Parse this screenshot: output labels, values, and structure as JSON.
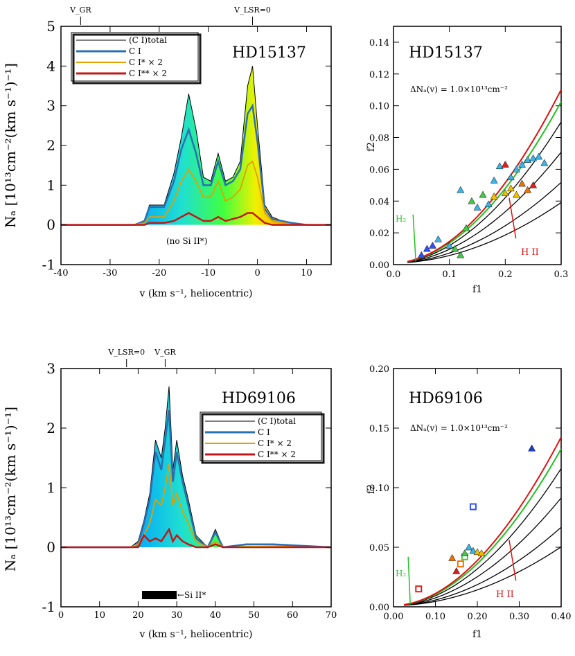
{
  "chart_data": [
    {
      "type": "line",
      "panel": "top-left",
      "star": "HD15137",
      "xlabel": "v (km s⁻¹, heliocentric)",
      "ylabel": "Nₐ [10¹³cm⁻²(km s⁻¹)⁻¹]",
      "xlim": [
        -40,
        15
      ],
      "ylim": [
        -1,
        5
      ],
      "xticks": [
        -40,
        -30,
        -20,
        -10,
        0,
        10
      ],
      "yticks": [
        -1,
        0,
        1,
        2,
        3,
        4,
        5
      ],
      "top_markers": [
        {
          "label": "V_GR",
          "x": -36
        },
        {
          "label": "V_LSR=0",
          "x": -1
        }
      ],
      "annotation": "(no Si II*)",
      "legend": [
        "(C I)total",
        "C I",
        "C I* × 2",
        "C I** × 2"
      ],
      "x": [
        -40,
        -30,
        -25,
        -23,
        -22,
        -21,
        -19,
        -17,
        -15.5,
        -14,
        -12.5,
        -11,
        -9.5,
        -8,
        -6.5,
        -5,
        -3.5,
        -2,
        -1,
        0,
        1.5,
        3,
        5,
        7,
        10,
        15
      ],
      "series": [
        {
          "name": "(C I)total",
          "values": [
            0,
            0,
            0,
            0.1,
            0.5,
            0.5,
            0.5,
            1.3,
            2.2,
            3.3,
            2.4,
            1.2,
            1.1,
            1.8,
            1.1,
            1.2,
            1.6,
            3.5,
            4.0,
            2.5,
            0.5,
            0.2,
            0.1,
            0.05,
            0,
            0
          ]
        },
        {
          "name": "C I",
          "values": [
            0,
            0,
            0,
            0.1,
            0.45,
            0.45,
            0.45,
            1.1,
            1.9,
            2.4,
            1.8,
            1.0,
            1.0,
            1.6,
            1.0,
            1.1,
            1.4,
            2.8,
            3.0,
            2.1,
            0.4,
            0.15,
            0.1,
            0.05,
            0,
            0
          ]
        },
        {
          "name": "C I* × 2",
          "values": [
            0,
            0,
            0,
            0.05,
            0.2,
            0.2,
            0.2,
            0.6,
            1.1,
            1.4,
            1.1,
            0.7,
            0.7,
            1.1,
            0.6,
            0.7,
            0.9,
            1.5,
            1.6,
            1.2,
            0.3,
            0.1,
            0.05,
            0,
            0,
            0
          ]
        },
        {
          "name": "C I** × 2",
          "values": [
            0,
            0,
            0,
            0,
            0.05,
            0.05,
            0.05,
            0.1,
            0.2,
            0.3,
            0.2,
            0.1,
            0.1,
            0.2,
            0.1,
            0.15,
            0.2,
            0.3,
            0.3,
            0.2,
            0.05,
            0,
            0,
            0,
            0,
            0
          ]
        }
      ]
    },
    {
      "type": "scatter",
      "panel": "top-right",
      "star": "HD15137",
      "annotation": "ΔNₐ(v) = 1.0×10¹³cm⁻²",
      "xlabel": "f1",
      "ylabel": "f2",
      "xlim": [
        0,
        0.3
      ],
      "ylim": [
        0,
        0.15
      ],
      "xticks": [
        "0.0",
        "0.1",
        "0.2",
        "0.3"
      ],
      "yticks": [
        "0.00",
        "0.02",
        "0.04",
        "0.06",
        "0.08",
        "0.10",
        "0.12",
        "0.14"
      ],
      "labels": {
        "h2": "H₂",
        "hii": "H II"
      },
      "points": [
        {
          "x": 0.08,
          "y": 0.016,
          "c": "#3cb4e6"
        },
        {
          "x": 0.1,
          "y": 0.012,
          "c": "#3cb4e6"
        },
        {
          "x": 0.12,
          "y": 0.047,
          "c": "#3cb4e6"
        },
        {
          "x": 0.15,
          "y": 0.036,
          "c": "#3cb4e6"
        },
        {
          "x": 0.17,
          "y": 0.038,
          "c": "#3cb4e6"
        },
        {
          "x": 0.18,
          "y": 0.053,
          "c": "#3cb4e6"
        },
        {
          "x": 0.19,
          "y": 0.062,
          "c": "#3cb4e6"
        },
        {
          "x": 0.21,
          "y": 0.055,
          "c": "#3cb4e6"
        },
        {
          "x": 0.23,
          "y": 0.063,
          "c": "#3cb4e6"
        },
        {
          "x": 0.24,
          "y": 0.066,
          "c": "#3cb4e6"
        },
        {
          "x": 0.25,
          "y": 0.067,
          "c": "#3cb4e6"
        },
        {
          "x": 0.26,
          "y": 0.068,
          "c": "#3cb4e6"
        },
        {
          "x": 0.27,
          "y": 0.064,
          "c": "#3cb4e6"
        },
        {
          "x": 0.22,
          "y": 0.06,
          "c": "#3cb4e6"
        },
        {
          "x": 0.11,
          "y": 0.01,
          "c": "#48c848"
        },
        {
          "x": 0.13,
          "y": 0.023,
          "c": "#48c848"
        },
        {
          "x": 0.14,
          "y": 0.04,
          "c": "#48c848"
        },
        {
          "x": 0.16,
          "y": 0.044,
          "c": "#48c848"
        },
        {
          "x": 0.12,
          "y": 0.006,
          "c": "#48c848"
        },
        {
          "x": 0.18,
          "y": 0.043,
          "c": "#f0c000"
        },
        {
          "x": 0.2,
          "y": 0.045,
          "c": "#f0c000"
        },
        {
          "x": 0.21,
          "y": 0.048,
          "c": "#f0c000"
        },
        {
          "x": 0.22,
          "y": 0.044,
          "c": "#f0c000"
        },
        {
          "x": 0.24,
          "y": 0.047,
          "c": "#f07000"
        },
        {
          "x": 0.23,
          "y": 0.051,
          "c": "#f07000"
        },
        {
          "x": 0.2,
          "y": 0.063,
          "c": "#dc1e1e"
        },
        {
          "x": 0.25,
          "y": 0.05,
          "c": "#dc1e1e"
        },
        {
          "x": 0.06,
          "y": 0.01,
          "c": "#3050ff"
        },
        {
          "x": 0.05,
          "y": 0.006,
          "c": "#3050ff"
        },
        {
          "x": 0.07,
          "y": 0.012,
          "c": "#3050ff"
        }
      ]
    },
    {
      "type": "line",
      "panel": "bottom-left",
      "star": "HD69106",
      "xlabel": "v (km s⁻¹, heliocentric)",
      "ylabel": "Nₐ [10¹³cm⁻²(km s⁻¹)⁻¹]",
      "xlim": [
        0,
        70
      ],
      "ylim": [
        -1,
        3
      ],
      "xticks": [
        0,
        10,
        20,
        30,
        40,
        50,
        60,
        70
      ],
      "yticks": [
        -1,
        0,
        1,
        2,
        3
      ],
      "top_markers": [
        {
          "label": "V_LSR=0",
          "x": 17
        },
        {
          "label": "V_GR",
          "x": 27
        }
      ],
      "annotation": "←Si II*",
      "legend": [
        "(C I)total",
        "C I",
        "C I* × 2",
        "C I** × 2"
      ],
      "x": [
        0,
        18,
        20,
        21.5,
        23,
        24.5,
        26,
        27,
        28,
        29,
        30,
        31.5,
        33,
        35,
        38,
        40,
        42,
        48,
        55,
        70
      ],
      "series": [
        {
          "name": "(C I)total",
          "values": [
            0,
            0,
            0.1,
            0.45,
            0.9,
            1.8,
            1.5,
            2.0,
            2.7,
            1.3,
            1.8,
            1.2,
            0.8,
            0.2,
            0,
            0.3,
            0,
            0.05,
            0.05,
            0
          ]
        },
        {
          "name": "C I",
          "values": [
            0,
            0,
            0.05,
            0.4,
            0.8,
            1.6,
            1.3,
            1.8,
            2.3,
            1.1,
            1.6,
            1.1,
            0.7,
            0.15,
            0,
            0.25,
            0,
            0.05,
            0.05,
            0
          ]
        },
        {
          "name": "C I* × 2",
          "values": [
            0,
            0,
            0.05,
            0.2,
            0.4,
            0.8,
            0.7,
            1.0,
            1.4,
            0.7,
            0.9,
            0.6,
            0.4,
            0.1,
            0,
            0.1,
            0,
            0,
            0,
            0
          ]
        },
        {
          "name": "C I** × 2",
          "values": [
            0,
            0,
            0,
            0.2,
            0.1,
            0.15,
            0.1,
            0.2,
            0.3,
            0.1,
            0.2,
            0.1,
            0.05,
            0,
            0,
            0.05,
            0,
            0,
            0,
            0
          ]
        }
      ]
    },
    {
      "type": "scatter",
      "panel": "bottom-right",
      "star": "HD69106",
      "annotation": "ΔNₐ(v) = 1.0×10¹³cm⁻²",
      "xlabel": "f1",
      "ylabel": "f2",
      "xlim": [
        0,
        0.4
      ],
      "ylim": [
        0,
        0.2
      ],
      "xticks": [
        "0.00",
        "0.10",
        "0.20",
        "0.30",
        "0.40"
      ],
      "yticks": [
        "0.00",
        "0.05",
        "0.10",
        "0.15",
        "0.20"
      ],
      "labels": {
        "h2": "H₂",
        "hii": "H II"
      },
      "points": [
        {
          "x": 0.33,
          "y": 0.133,
          "c": "#2040c0"
        },
        {
          "x": 0.19,
          "y": 0.084,
          "c": "#3050ff"
        },
        {
          "x": 0.18,
          "y": 0.05,
          "c": "#3cb4e6"
        },
        {
          "x": 0.19,
          "y": 0.047,
          "c": "#3cb4e6"
        },
        {
          "x": 0.17,
          "y": 0.042,
          "c": "#48c848"
        },
        {
          "x": 0.2,
          "y": 0.046,
          "c": "#f0c000"
        },
        {
          "x": 0.21,
          "y": 0.045,
          "c": "#f0c000"
        },
        {
          "x": 0.16,
          "y": 0.036,
          "c": "#f07000"
        },
        {
          "x": 0.14,
          "y": 0.041,
          "c": "#f07000"
        },
        {
          "x": 0.15,
          "y": 0.03,
          "c": "#dc1e1e"
        },
        {
          "x": 0.06,
          "y": 0.015,
          "c": "#dc1e1e"
        },
        {
          "x": 0.17,
          "y": 0.045,
          "c": "#48c848"
        }
      ]
    }
  ]
}
